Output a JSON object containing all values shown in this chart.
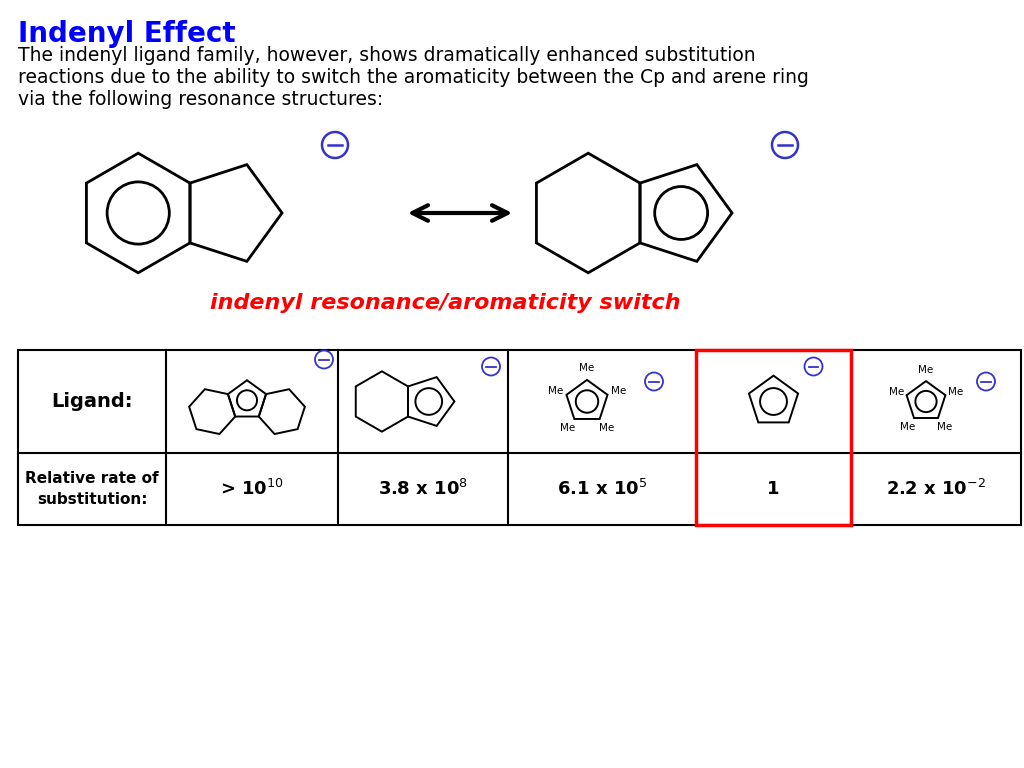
{
  "title": "Indenyl Effect",
  "title_color": "#0000FF",
  "body_text_line1": "The indenyl ligand family, however, shows dramatically enhanced substitution",
  "body_text_line2": "reactions due to the ability to switch the aromaticity between the Cp and arene ring",
  "body_text_line3": "via the following resonance structures:",
  "resonance_label": "indenyl resonance/aromaticity switch",
  "resonance_label_color": "#FF0000",
  "background_color": "#FFFFFF",
  "blue_color": "#3333CC",
  "lw_main": 2.0,
  "lw_table": 1.5,
  "table_rates": [
    "> 10$^{10}$",
    "3.8 x 10$^{8}$",
    "6.1 x 10$^{5}$",
    "1",
    "2.2 x 10$^{-2}$"
  ],
  "red_highlight_col": 4
}
